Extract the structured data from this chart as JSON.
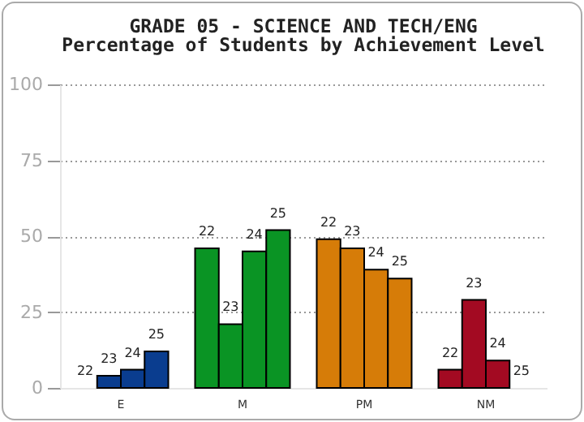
{
  "chart_data": {
    "type": "bar",
    "title": "GRADE 05 - SCIENCE AND TECH/ENG",
    "subtitle": "Percentage of Students by Achievement Level",
    "categories": [
      "E",
      "M",
      "PM",
      "NM"
    ],
    "series": [
      {
        "name": "22",
        "colors": [
          "#0a3d8f",
          "#0a9424",
          "#d67c08",
          "#a30a22"
        ],
        "values": [
          0,
          46,
          49,
          6
        ]
      },
      {
        "name": "23",
        "colors": [
          "#0a3d8f",
          "#0a9424",
          "#d67c08",
          "#a30a22"
        ],
        "values": [
          4,
          21,
          46,
          29
        ]
      },
      {
        "name": "24",
        "colors": [
          "#0a3d8f",
          "#0a9424",
          "#d67c08",
          "#a30a22"
        ],
        "values": [
          6,
          45,
          39,
          9
        ]
      },
      {
        "name": "25",
        "colors": [
          "#0a3d8f",
          "#0a9424",
          "#d67c08",
          "#a30a22"
        ],
        "values": [
          12,
          52,
          36,
          0
        ]
      }
    ],
    "ylim": [
      0,
      100
    ],
    "yticks": [
      0,
      25,
      50,
      75,
      100
    ],
    "grid": "y"
  }
}
